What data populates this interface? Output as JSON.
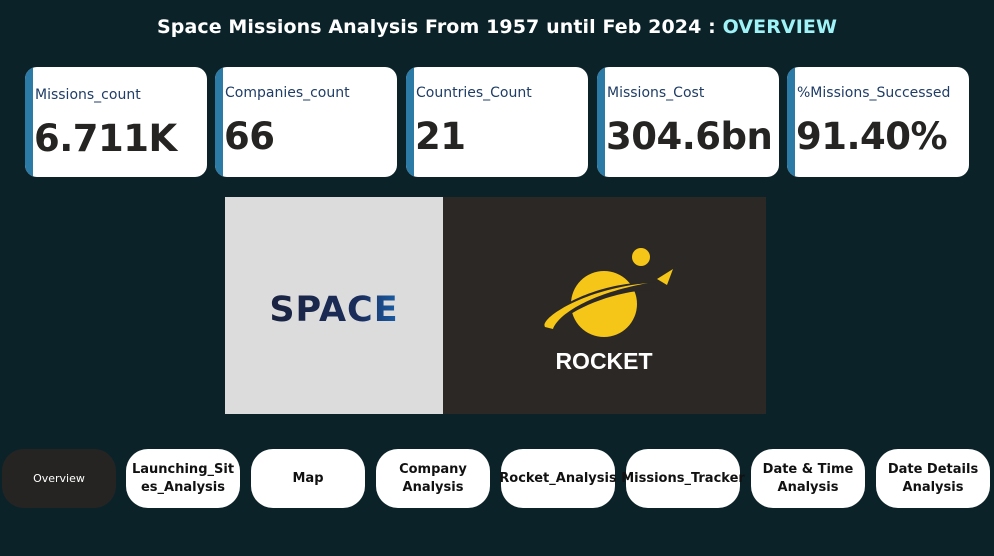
{
  "header": {
    "title_main": "Space Missions Analysis From 1957 until Feb 2024 : ",
    "title_highlight": "OVERVIEW"
  },
  "kpis": [
    {
      "label": "Missions_count",
      "value": "6.711K"
    },
    {
      "label": "Companies_count",
      "value": "66"
    },
    {
      "label": "Countries_Count",
      "value": "21"
    },
    {
      "label": "Missions_Cost",
      "value": "304.6bn"
    },
    {
      "label": "%Missions_Successed",
      "value": "91.40%"
    }
  ],
  "logos": {
    "space_text": "SPACE",
    "rocket_text": "ROCKET"
  },
  "nav": [
    {
      "label": "Overview",
      "active": true
    },
    {
      "label": "Launching_Sites_Analysis"
    },
    {
      "label": "Map"
    },
    {
      "label": "Company Analysis"
    },
    {
      "label": "Rocket_Analysis"
    },
    {
      "label": "Missions_Tracker"
    },
    {
      "label": "Date & Time Analysis"
    },
    {
      "label": "Date Details Analysis"
    }
  ],
  "colors": {
    "background": "#0b2328",
    "accent": "#2c7aa6",
    "title_highlight": "#9ff3f7",
    "planet_yellow": "#f5c518"
  }
}
